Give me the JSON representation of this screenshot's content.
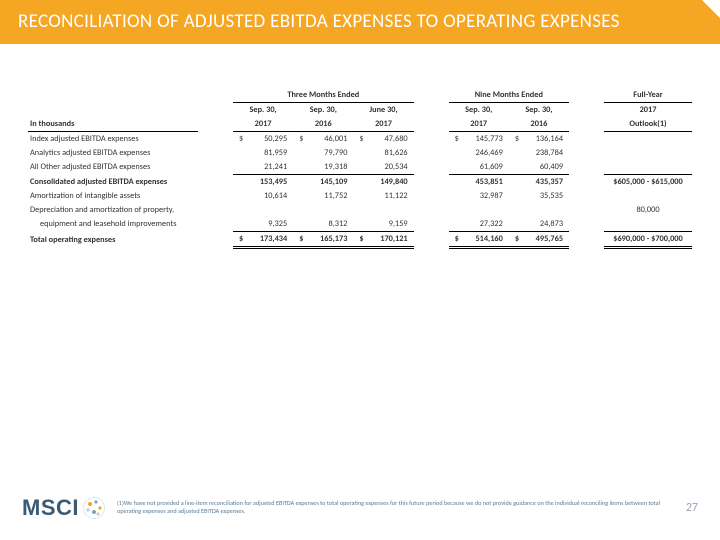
{
  "colors": {
    "accent": "#f5a623",
    "brand_text": "#3b5b75",
    "footnote": "#5a7a94",
    "pagenum": "#9aa7b3",
    "bg": "#ffffff"
  },
  "title": "RECONCILIATION OF ADJUSTED EBITDA EXPENSES TO OPERATING EXPENSES",
  "table": {
    "unit_label": "In thousands",
    "period_groups": [
      {
        "label": "Three Months Ended",
        "cols": 3
      },
      {
        "label": "Nine Months Ended",
        "cols": 2
      },
      {
        "label": "Full-Year",
        "cols": 1
      }
    ],
    "columns": [
      {
        "line1": "Sep. 30,",
        "line2": "2017"
      },
      {
        "line1": "Sep. 30,",
        "line2": "2016"
      },
      {
        "line1": "June 30,",
        "line2": "2017"
      },
      {
        "line1": "Sep. 30,",
        "line2": "2017"
      },
      {
        "line1": "Sep. 30,",
        "line2": "2016"
      },
      {
        "line1": "2017",
        "line2": "Outlook(1)"
      }
    ],
    "rows": [
      {
        "label": "Index adjusted EBITDA expenses",
        "vals": [
          "50,295",
          "46,001",
          "47,680",
          "145,773",
          "136,164"
        ],
        "outlook": "",
        "bold": false,
        "rule": "none",
        "show_cur": true
      },
      {
        "label": "Analytics adjusted EBITDA expenses",
        "vals": [
          "81,959",
          "79,790",
          "81,626",
          "246,469",
          "238,784"
        ],
        "outlook": "",
        "bold": false,
        "rule": "none",
        "show_cur": false
      },
      {
        "label": "All Other adjusted EBITDA expenses",
        "vals": [
          "21,241",
          "19,318",
          "20,534",
          "61,609",
          "60,409"
        ],
        "outlook": "",
        "bold": false,
        "rule": "none",
        "show_cur": false
      },
      {
        "label": "Consolidated adjusted EBITDA expenses",
        "vals": [
          "153,495",
          "145,109",
          "149,840",
          "453,851",
          "435,357"
        ],
        "outlook": "$605,000 - $615,000",
        "bold": true,
        "rule": "top",
        "show_cur": false
      },
      {
        "label": "Amortization of intangible assets",
        "vals": [
          "10,614",
          "11,752",
          "11,122",
          "32,987",
          "35,535"
        ],
        "outlook": "",
        "bold": false,
        "rule": "none",
        "show_cur": false
      },
      {
        "label": "Depreciation and amortization of property,",
        "vals": [
          "",
          "",
          "",
          "",
          ""
        ],
        "outlook": "80,000",
        "bold": false,
        "rule": "none",
        "show_cur": false
      },
      {
        "label": "equipment and leasehold improvements",
        "indent": true,
        "vals": [
          "9,325",
          "8,312",
          "9,159",
          "27,322",
          "24,873"
        ],
        "outlook": "",
        "bold": false,
        "rule": "none",
        "show_cur": false
      },
      {
        "label": "Total operating expenses",
        "vals": [
          "173,434",
          "165,173",
          "170,121",
          "514,160",
          "495,765"
        ],
        "outlook": "$690,000 - $700,000",
        "bold": true,
        "rule": "double",
        "show_cur": true
      }
    ],
    "currency_symbol": "$"
  },
  "footer": {
    "logo_text": "MSCI",
    "footnote": "(1)We have not provided a line-item reconciliation for adjusted EBITDA expenses to total operating expenses for this future period because we do not provide guidance on the individual reconciling items between total operating expenses and adjusted EBITDA expenses.",
    "page_number": "27"
  }
}
